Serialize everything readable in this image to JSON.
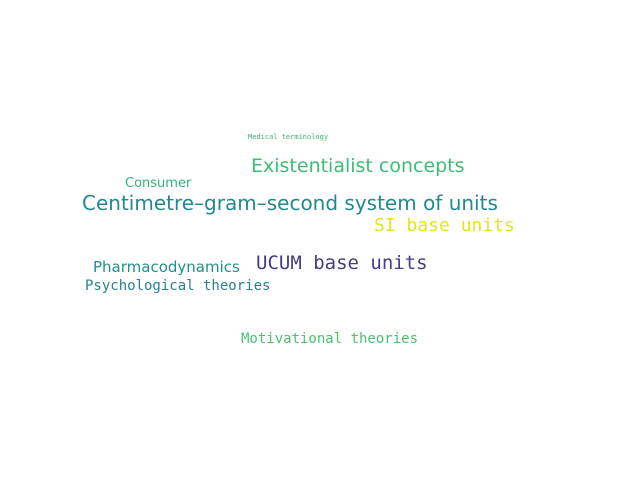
{
  "words": [
    {
      "text": "Medical terminology",
      "color": "#35b779"
    },
    {
      "text": "Existentialist concepts",
      "color": "#3dbc74"
    },
    {
      "text": "Consumer",
      "color": "#2fb47c"
    },
    {
      "text": "Centimetre–gram–second system of units",
      "color": "#23898e"
    },
    {
      "text": "SI base units",
      "color": "#e4e419"
    },
    {
      "text": "UCUM base units",
      "color": "#433e85"
    },
    {
      "text": "Pharmacodynamics",
      "color": "#218f8d"
    },
    {
      "text": "Psychological theories",
      "color": "#26828e"
    },
    {
      "text": "Motivational theories",
      "color": "#4ac16d"
    }
  ]
}
